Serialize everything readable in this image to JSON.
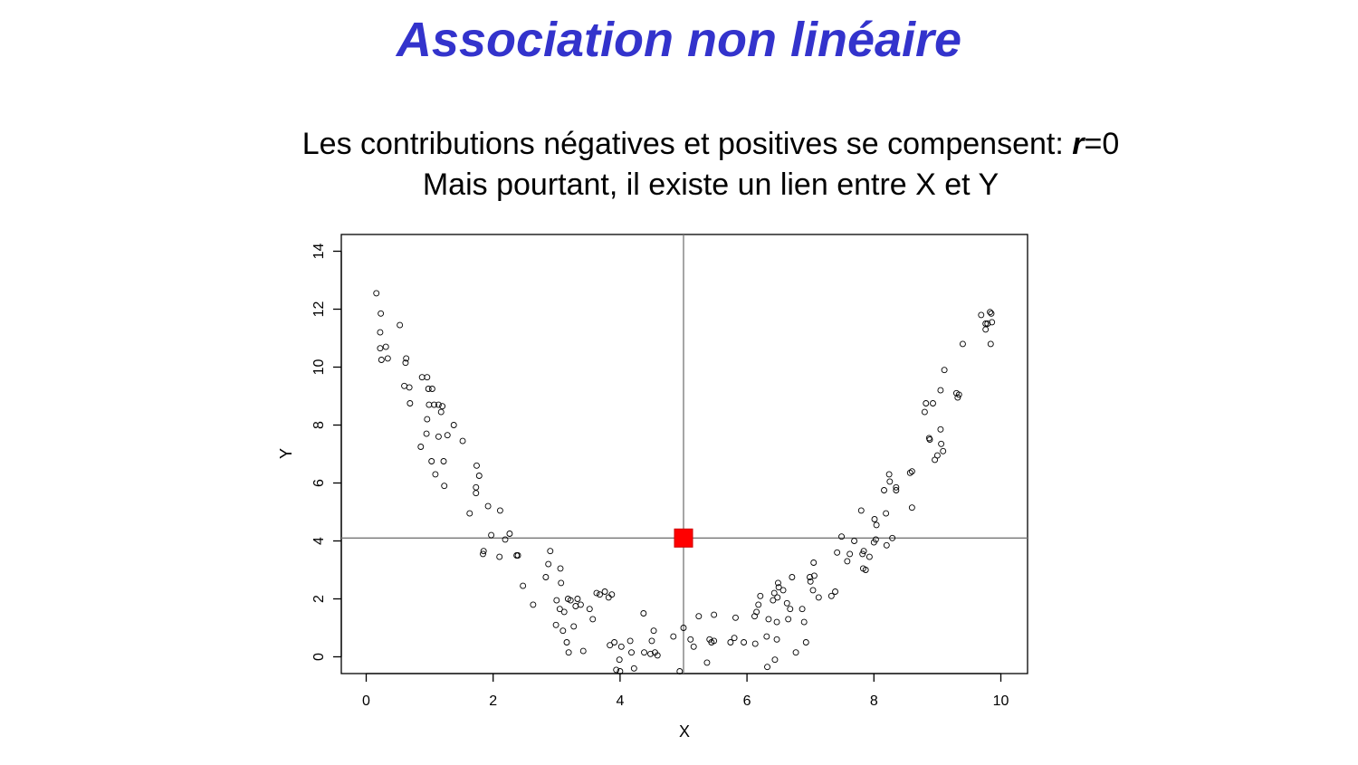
{
  "slide": {
    "title": "Association non linéaire",
    "subtitle_line1_prefix": "Les contributions négatives et positives se compensent: ",
    "subtitle_line1_var": "r",
    "subtitle_line1_suffix": "=0",
    "subtitle_line2": "Mais pourtant, il existe un lien entre X et Y"
  },
  "colors": {
    "title": "#3333cc",
    "mean_marker": "#ff0000",
    "points": "#000000",
    "reference_lines": "#777777"
  },
  "chart_data": {
    "type": "scatter",
    "xlabel": "X",
    "ylabel": "Y",
    "xlim": [
      -0.4,
      10.4
    ],
    "ylim": [
      -0.55,
      14.55
    ],
    "xticks": [
      0,
      2,
      4,
      6,
      8,
      10
    ],
    "yticks": [
      0,
      2,
      4,
      6,
      8,
      10,
      12,
      14
    ],
    "grid": false,
    "legend": "none",
    "marker": "open-circle",
    "mean_point": {
      "x": 5.0,
      "y": 4.1,
      "marker": "filled-square"
    },
    "reference_lines": {
      "vertical_x": 5.0,
      "horizontal_y": 4.1
    },
    "points": [
      [
        0.16,
        12.55
      ],
      [
        0.23,
        11.85
      ],
      [
        0.22,
        11.2
      ],
      [
        0.22,
        10.65
      ],
      [
        0.31,
        10.7
      ],
      [
        0.24,
        10.25
      ],
      [
        0.34,
        10.3
      ],
      [
        0.53,
        11.45
      ],
      [
        0.63,
        10.3
      ],
      [
        0.62,
        10.15
      ],
      [
        0.6,
        9.35
      ],
      [
        0.68,
        9.3
      ],
      [
        0.69,
        8.75
      ],
      [
        0.88,
        9.65
      ],
      [
        0.96,
        9.65
      ],
      [
        0.98,
        9.25
      ],
      [
        1.04,
        9.25
      ],
      [
        0.99,
        8.7
      ],
      [
        1.07,
        8.7
      ],
      [
        1.14,
        8.7
      ],
      [
        1.2,
        8.65
      ],
      [
        1.18,
        8.45
      ],
      [
        0.96,
        8.2
      ],
      [
        1.38,
        8.0
      ],
      [
        0.95,
        7.7
      ],
      [
        1.14,
        7.6
      ],
      [
        1.28,
        7.65
      ],
      [
        1.52,
        7.45
      ],
      [
        0.86,
        7.25
      ],
      [
        1.03,
        6.75
      ],
      [
        1.22,
        6.75
      ],
      [
        1.09,
        6.3
      ],
      [
        1.23,
        5.9
      ],
      [
        1.74,
        6.6
      ],
      [
        1.78,
        6.25
      ],
      [
        1.73,
        5.85
      ],
      [
        1.73,
        5.65
      ],
      [
        1.92,
        5.2
      ],
      [
        1.63,
        4.95
      ],
      [
        2.11,
        5.05
      ],
      [
        2.26,
        4.25
      ],
      [
        1.97,
        4.2
      ],
      [
        2.19,
        4.05
      ],
      [
        1.85,
        3.65
      ],
      [
        1.84,
        3.55
      ],
      [
        2.1,
        3.45
      ],
      [
        2.37,
        3.5
      ],
      [
        2.39,
        3.5
      ],
      [
        2.9,
        3.65
      ],
      [
        2.87,
        3.2
      ],
      [
        3.06,
        3.05
      ],
      [
        2.83,
        2.75
      ],
      [
        3.07,
        2.55
      ],
      [
        2.47,
        2.45
      ],
      [
        2.63,
        1.8
      ],
      [
        3.0,
        1.95
      ],
      [
        3.18,
        2.0
      ],
      [
        3.22,
        1.95
      ],
      [
        3.33,
        2.0
      ],
      [
        3.05,
        1.65
      ],
      [
        3.12,
        1.55
      ],
      [
        3.3,
        1.75
      ],
      [
        3.38,
        1.8
      ],
      [
        3.52,
        1.65
      ],
      [
        3.57,
        1.3
      ],
      [
        3.63,
        2.2
      ],
      [
        3.68,
        2.15
      ],
      [
        3.76,
        2.25
      ],
      [
        3.82,
        2.05
      ],
      [
        3.87,
        2.15
      ],
      [
        2.99,
        1.1
      ],
      [
        3.1,
        0.9
      ],
      [
        3.27,
        1.05
      ],
      [
        3.16,
        0.5
      ],
      [
        3.19,
        0.15
      ],
      [
        3.42,
        0.2
      ],
      [
        3.84,
        0.4
      ],
      [
        3.91,
        0.5
      ],
      [
        4.02,
        0.35
      ],
      [
        4.16,
        0.55
      ],
      [
        4.18,
        0.15
      ],
      [
        3.99,
        -0.1
      ],
      [
        3.94,
        -0.45
      ],
      [
        4.0,
        -0.5
      ],
      [
        4.22,
        -0.4
      ],
      [
        4.37,
        1.5
      ],
      [
        4.5,
        0.55
      ],
      [
        4.53,
        0.9
      ],
      [
        4.38,
        0.15
      ],
      [
        4.48,
        0.1
      ],
      [
        4.55,
        0.15
      ],
      [
        4.59,
        0.05
      ],
      [
        4.84,
        0.7
      ],
      [
        4.94,
        -0.5
      ],
      [
        5.0,
        1.0
      ],
      [
        5.11,
        0.6
      ],
      [
        5.16,
        0.35
      ],
      [
        5.24,
        1.4
      ],
      [
        5.37,
        -0.2
      ],
      [
        5.41,
        0.6
      ],
      [
        5.44,
        0.5
      ],
      [
        5.48,
        0.55
      ],
      [
        5.48,
        1.45
      ],
      [
        5.74,
        0.5
      ],
      [
        5.8,
        0.65
      ],
      [
        5.82,
        1.35
      ],
      [
        5.95,
        0.5
      ],
      [
        6.12,
        1.4
      ],
      [
        6.15,
        1.55
      ],
      [
        6.18,
        1.8
      ],
      [
        6.21,
        2.1
      ],
      [
        6.13,
        0.45
      ],
      [
        6.31,
        0.7
      ],
      [
        6.34,
        1.3
      ],
      [
        6.32,
        -0.35
      ],
      [
        6.44,
        -0.1
      ],
      [
        6.47,
        0.6
      ],
      [
        6.41,
        1.95
      ],
      [
        6.43,
        2.2
      ],
      [
        6.48,
        2.05
      ],
      [
        6.5,
        2.4
      ],
      [
        6.49,
        2.55
      ],
      [
        6.57,
        2.3
      ],
      [
        6.63,
        1.85
      ],
      [
        6.68,
        1.65
      ],
      [
        6.71,
        2.75
      ],
      [
        6.47,
        1.2
      ],
      [
        6.65,
        1.3
      ],
      [
        6.77,
        0.15
      ],
      [
        6.87,
        1.65
      ],
      [
        6.9,
        1.2
      ],
      [
        6.93,
        0.5
      ],
      [
        6.99,
        2.75
      ],
      [
        7.0,
        2.6
      ],
      [
        7.04,
        2.3
      ],
      [
        7.06,
        2.8
      ],
      [
        7.05,
        3.25
      ],
      [
        7.13,
        2.05
      ],
      [
        7.33,
        2.1
      ],
      [
        7.39,
        2.25
      ],
      [
        7.42,
        3.6
      ],
      [
        7.49,
        4.15
      ],
      [
        7.58,
        3.3
      ],
      [
        7.62,
        3.55
      ],
      [
        7.69,
        4.0
      ],
      [
        7.8,
        5.05
      ],
      [
        7.82,
        3.55
      ],
      [
        7.84,
        3.65
      ],
      [
        7.83,
        3.05
      ],
      [
        7.87,
        3.0
      ],
      [
        7.93,
        3.45
      ],
      [
        8.0,
        3.95
      ],
      [
        8.03,
        4.05
      ],
      [
        8.01,
        4.75
      ],
      [
        8.04,
        4.55
      ],
      [
        8.2,
        3.85
      ],
      [
        8.29,
        4.1
      ],
      [
        8.19,
        4.95
      ],
      [
        8.16,
        5.75
      ],
      [
        8.25,
        6.05
      ],
      [
        8.24,
        6.3
      ],
      [
        8.35,
        5.85
      ],
      [
        8.35,
        5.75
      ],
      [
        8.57,
        6.35
      ],
      [
        8.6,
        6.4
      ],
      [
        8.6,
        5.15
      ],
      [
        8.8,
        8.45
      ],
      [
        8.82,
        8.75
      ],
      [
        8.93,
        8.75
      ],
      [
        8.87,
        7.55
      ],
      [
        8.88,
        7.5
      ],
      [
        8.96,
        6.8
      ],
      [
        9.0,
        6.95
      ],
      [
        9.05,
        7.85
      ],
      [
        9.06,
        7.35
      ],
      [
        9.09,
        7.1
      ],
      [
        9.05,
        9.2
      ],
      [
        9.11,
        9.9
      ],
      [
        9.3,
        9.1
      ],
      [
        9.34,
        9.05
      ],
      [
        9.32,
        8.95
      ],
      [
        9.4,
        10.8
      ],
      [
        9.69,
        11.8
      ],
      [
        9.76,
        11.5
      ],
      [
        9.79,
        11.5
      ],
      [
        9.76,
        11.3
      ],
      [
        9.83,
        11.9
      ],
      [
        9.85,
        11.85
      ],
      [
        9.86,
        11.55
      ],
      [
        9.84,
        10.8
      ]
    ]
  }
}
